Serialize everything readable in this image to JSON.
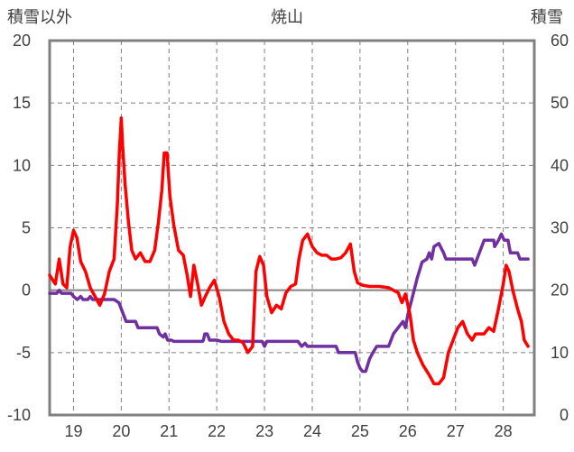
{
  "chart_data": {
    "type": "line",
    "title": "焼山",
    "ylabel_left": "積雪以外",
    "ylabel_right": "積雪",
    "xlabel": "",
    "x_ticks": [
      "19",
      "20",
      "21",
      "22",
      "23",
      "24",
      "25",
      "26",
      "27",
      "28"
    ],
    "x_range": [
      18.5,
      28.65
    ],
    "ylim_left": [
      -10,
      20
    ],
    "ylim_right": [
      0,
      60
    ],
    "y_ticks_left": [
      -10,
      -5,
      0,
      5,
      10,
      15,
      20
    ],
    "y_ticks_right": [
      0,
      10,
      20,
      30,
      40,
      50,
      60
    ],
    "grid": true,
    "colors": {
      "temperature": "#ff0000",
      "snow_depth": "#7030a0",
      "axis": "#808080",
      "grid": "#808080"
    },
    "series": [
      {
        "axis": "left",
        "color": "#ff0000",
        "points": [
          [
            18.5,
            1.2
          ],
          [
            18.62,
            0.5
          ],
          [
            18.7,
            2.5
          ],
          [
            18.78,
            0.5
          ],
          [
            18.86,
            0.2
          ],
          [
            18.93,
            3.5
          ],
          [
            19.0,
            4.8
          ],
          [
            19.07,
            4.2
          ],
          [
            19.15,
            2.3
          ],
          [
            19.25,
            1.5
          ],
          [
            19.35,
            0.2
          ],
          [
            19.45,
            -0.5
          ],
          [
            19.55,
            -1.2
          ],
          [
            19.65,
            -0.3
          ],
          [
            19.75,
            1.5
          ],
          [
            19.85,
            2.5
          ],
          [
            19.92,
            7.0
          ],
          [
            19.96,
            11.0
          ],
          [
            20.0,
            13.8
          ],
          [
            20.03,
            11.5
          ],
          [
            20.08,
            8.5
          ],
          [
            20.15,
            5.5
          ],
          [
            20.22,
            3.2
          ],
          [
            20.3,
            2.5
          ],
          [
            20.4,
            3.0
          ],
          [
            20.5,
            2.3
          ],
          [
            20.6,
            2.3
          ],
          [
            20.7,
            3.2
          ],
          [
            20.78,
            5.5
          ],
          [
            20.85,
            8.0
          ],
          [
            20.9,
            11.0
          ],
          [
            20.96,
            11.0
          ],
          [
            21.02,
            7.5
          ],
          [
            21.1,
            5.2
          ],
          [
            21.2,
            3.2
          ],
          [
            21.3,
            2.8
          ],
          [
            21.38,
            1.2
          ],
          [
            21.45,
            -0.5
          ],
          [
            21.52,
            2.0
          ],
          [
            21.6,
            0.5
          ],
          [
            21.68,
            -1.2
          ],
          [
            21.76,
            -0.5
          ],
          [
            21.85,
            0.2
          ],
          [
            21.95,
            0.8
          ],
          [
            22.05,
            -0.5
          ],
          [
            22.15,
            -2.5
          ],
          [
            22.25,
            -3.5
          ],
          [
            22.35,
            -4.0
          ],
          [
            22.45,
            -4.0
          ],
          [
            22.55,
            -4.2
          ],
          [
            22.65,
            -5.0
          ],
          [
            22.75,
            -4.5
          ],
          [
            22.82,
            1.5
          ],
          [
            22.9,
            2.7
          ],
          [
            22.98,
            2.0
          ],
          [
            23.05,
            -0.5
          ],
          [
            23.15,
            -1.8
          ],
          [
            23.25,
            -1.2
          ],
          [
            23.35,
            -1.5
          ],
          [
            23.45,
            -0.2
          ],
          [
            23.55,
            0.3
          ],
          [
            23.65,
            0.5
          ],
          [
            23.72,
            2.5
          ],
          [
            23.8,
            4.0
          ],
          [
            23.9,
            4.5
          ],
          [
            24.0,
            3.5
          ],
          [
            24.1,
            3.0
          ],
          [
            24.2,
            2.8
          ],
          [
            24.3,
            2.8
          ],
          [
            24.4,
            2.5
          ],
          [
            24.5,
            2.5
          ],
          [
            24.6,
            2.6
          ],
          [
            24.7,
            3.0
          ],
          [
            24.8,
            3.7
          ],
          [
            24.88,
            1.5
          ],
          [
            24.95,
            0.6
          ],
          [
            25.05,
            0.4
          ],
          [
            25.2,
            0.3
          ],
          [
            25.4,
            0.3
          ],
          [
            25.6,
            0.2
          ],
          [
            25.8,
            -0.2
          ],
          [
            25.88,
            -1.0
          ],
          [
            25.95,
            -0.3
          ],
          [
            26.05,
            -2.0
          ],
          [
            26.12,
            -4.0
          ],
          [
            26.2,
            -5.0
          ],
          [
            26.32,
            -6.0
          ],
          [
            26.45,
            -6.8
          ],
          [
            26.55,
            -7.5
          ],
          [
            26.65,
            -7.5
          ],
          [
            26.75,
            -7.0
          ],
          [
            26.85,
            -5.0
          ],
          [
            26.95,
            -4.0
          ],
          [
            27.05,
            -3.0
          ],
          [
            27.15,
            -2.5
          ],
          [
            27.25,
            -3.5
          ],
          [
            27.35,
            -4.0
          ],
          [
            27.42,
            -3.5
          ],
          [
            27.5,
            -3.5
          ],
          [
            27.6,
            -3.5
          ],
          [
            27.7,
            -3.0
          ],
          [
            27.8,
            -3.3
          ],
          [
            27.9,
            -1.5
          ],
          [
            28.0,
            0.5
          ],
          [
            28.06,
            2.0
          ],
          [
            28.12,
            1.5
          ],
          [
            28.2,
            0.0
          ],
          [
            28.3,
            -1.5
          ],
          [
            28.38,
            -2.5
          ],
          [
            28.44,
            -4.0
          ],
          [
            28.52,
            -4.5
          ]
        ]
      },
      {
        "axis": "right",
        "color": "#7030a0",
        "points": [
          [
            18.5,
            19.5
          ],
          [
            18.65,
            19.5
          ],
          [
            18.7,
            20.0
          ],
          [
            18.75,
            19.5
          ],
          [
            18.95,
            19.5
          ],
          [
            19.0,
            19.0
          ],
          [
            19.08,
            18.5
          ],
          [
            19.15,
            19.0
          ],
          [
            19.2,
            18.5
          ],
          [
            19.3,
            18.5
          ],
          [
            19.35,
            19.0
          ],
          [
            19.4,
            18.5
          ],
          [
            19.55,
            18.5
          ],
          [
            19.7,
            18.5
          ],
          [
            19.85,
            18.5
          ],
          [
            19.95,
            18.0
          ],
          [
            20.0,
            17.0
          ],
          [
            20.05,
            16.0
          ],
          [
            20.1,
            15.0
          ],
          [
            20.3,
            15.0
          ],
          [
            20.35,
            14.0
          ],
          [
            20.75,
            14.0
          ],
          [
            20.8,
            13.0
          ],
          [
            20.88,
            12.5
          ],
          [
            20.92,
            13.0
          ],
          [
            20.97,
            12.0
          ],
          [
            21.05,
            12.0
          ],
          [
            21.1,
            11.8
          ],
          [
            21.7,
            11.8
          ],
          [
            21.72,
            12.0
          ],
          [
            21.75,
            13.0
          ],
          [
            21.8,
            13.0
          ],
          [
            21.85,
            12.0
          ],
          [
            22.0,
            12.0
          ],
          [
            22.1,
            11.8
          ],
          [
            22.95,
            11.8
          ],
          [
            23.0,
            11.0
          ],
          [
            23.05,
            11.8
          ],
          [
            23.7,
            11.8
          ],
          [
            23.78,
            11.0
          ],
          [
            23.85,
            11.5
          ],
          [
            23.9,
            11.0
          ],
          [
            24.5,
            11.0
          ],
          [
            24.55,
            10.0
          ],
          [
            24.9,
            10.0
          ],
          [
            24.95,
            8.5
          ],
          [
            25.0,
            7.5
          ],
          [
            25.05,
            7.0
          ],
          [
            25.12,
            7.0
          ],
          [
            25.2,
            9.0
          ],
          [
            25.27,
            10.0
          ],
          [
            25.35,
            11.0
          ],
          [
            25.6,
            11.0
          ],
          [
            25.7,
            13.0
          ],
          [
            25.8,
            14.0
          ],
          [
            25.9,
            15.0
          ],
          [
            25.95,
            14.0
          ],
          [
            26.0,
            16.0
          ],
          [
            26.1,
            19.0
          ],
          [
            26.2,
            22.0
          ],
          [
            26.3,
            24.5
          ],
          [
            26.4,
            25.0
          ],
          [
            26.45,
            26.0
          ],
          [
            26.5,
            25.0
          ],
          [
            26.55,
            27.0
          ],
          [
            26.65,
            27.5
          ],
          [
            26.75,
            26.0
          ],
          [
            26.8,
            25.0
          ],
          [
            27.35,
            25.0
          ],
          [
            27.4,
            24.0
          ],
          [
            27.45,
            25.0
          ],
          [
            27.55,
            27.0
          ],
          [
            27.6,
            28.0
          ],
          [
            27.8,
            28.0
          ],
          [
            27.82,
            27.0
          ],
          [
            27.9,
            28.0
          ],
          [
            27.96,
            29.0
          ],
          [
            28.02,
            28.0
          ],
          [
            28.1,
            28.0
          ],
          [
            28.15,
            26.0
          ],
          [
            28.3,
            26.0
          ],
          [
            28.35,
            25.0
          ],
          [
            28.52,
            25.0
          ]
        ]
      }
    ]
  }
}
